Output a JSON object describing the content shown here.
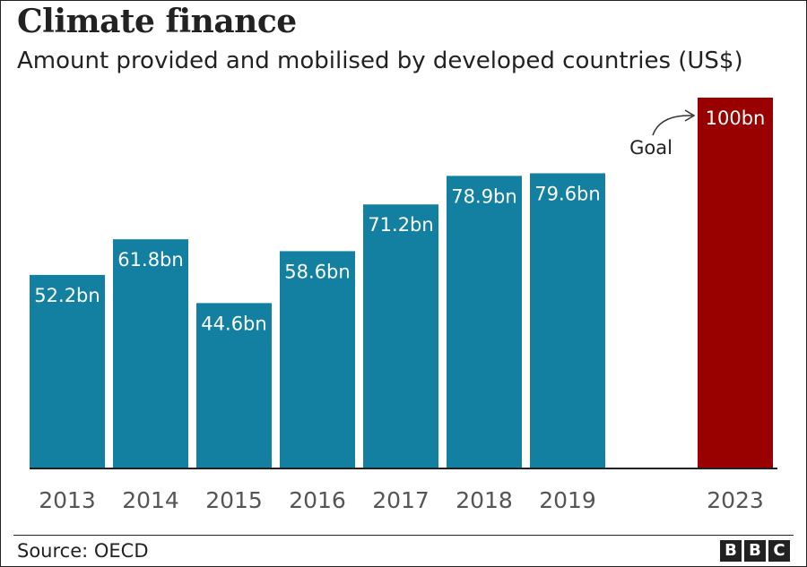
{
  "title": "Climate finance",
  "subtitle": "Amount provided and mobilised by developed countries (US$)",
  "source": "Source: OECD",
  "logo": [
    "B",
    "B",
    "C"
  ],
  "colors": {
    "bar": "#1380A1",
    "goal_bar": "#990000",
    "axis": "#222222",
    "tick": "#555555"
  },
  "chart_data": {
    "type": "bar",
    "categories": [
      "2013",
      "2014",
      "2015",
      "2016",
      "2017",
      "2018",
      "2019",
      "2023"
    ],
    "values": [
      52.2,
      61.8,
      44.6,
      58.6,
      71.2,
      78.9,
      79.6,
      100
    ],
    "data_labels": [
      "52.2bn",
      "61.8bn",
      "44.6bn",
      "58.6bn",
      "71.2bn",
      "78.9bn",
      "79.6bn",
      "100bn"
    ],
    "highlight_category": "2023",
    "annotation": {
      "text": "Goal",
      "target": "2023"
    },
    "ylim": [
      0,
      100
    ],
    "xlabel": "",
    "ylabel": "",
    "grid": false
  }
}
